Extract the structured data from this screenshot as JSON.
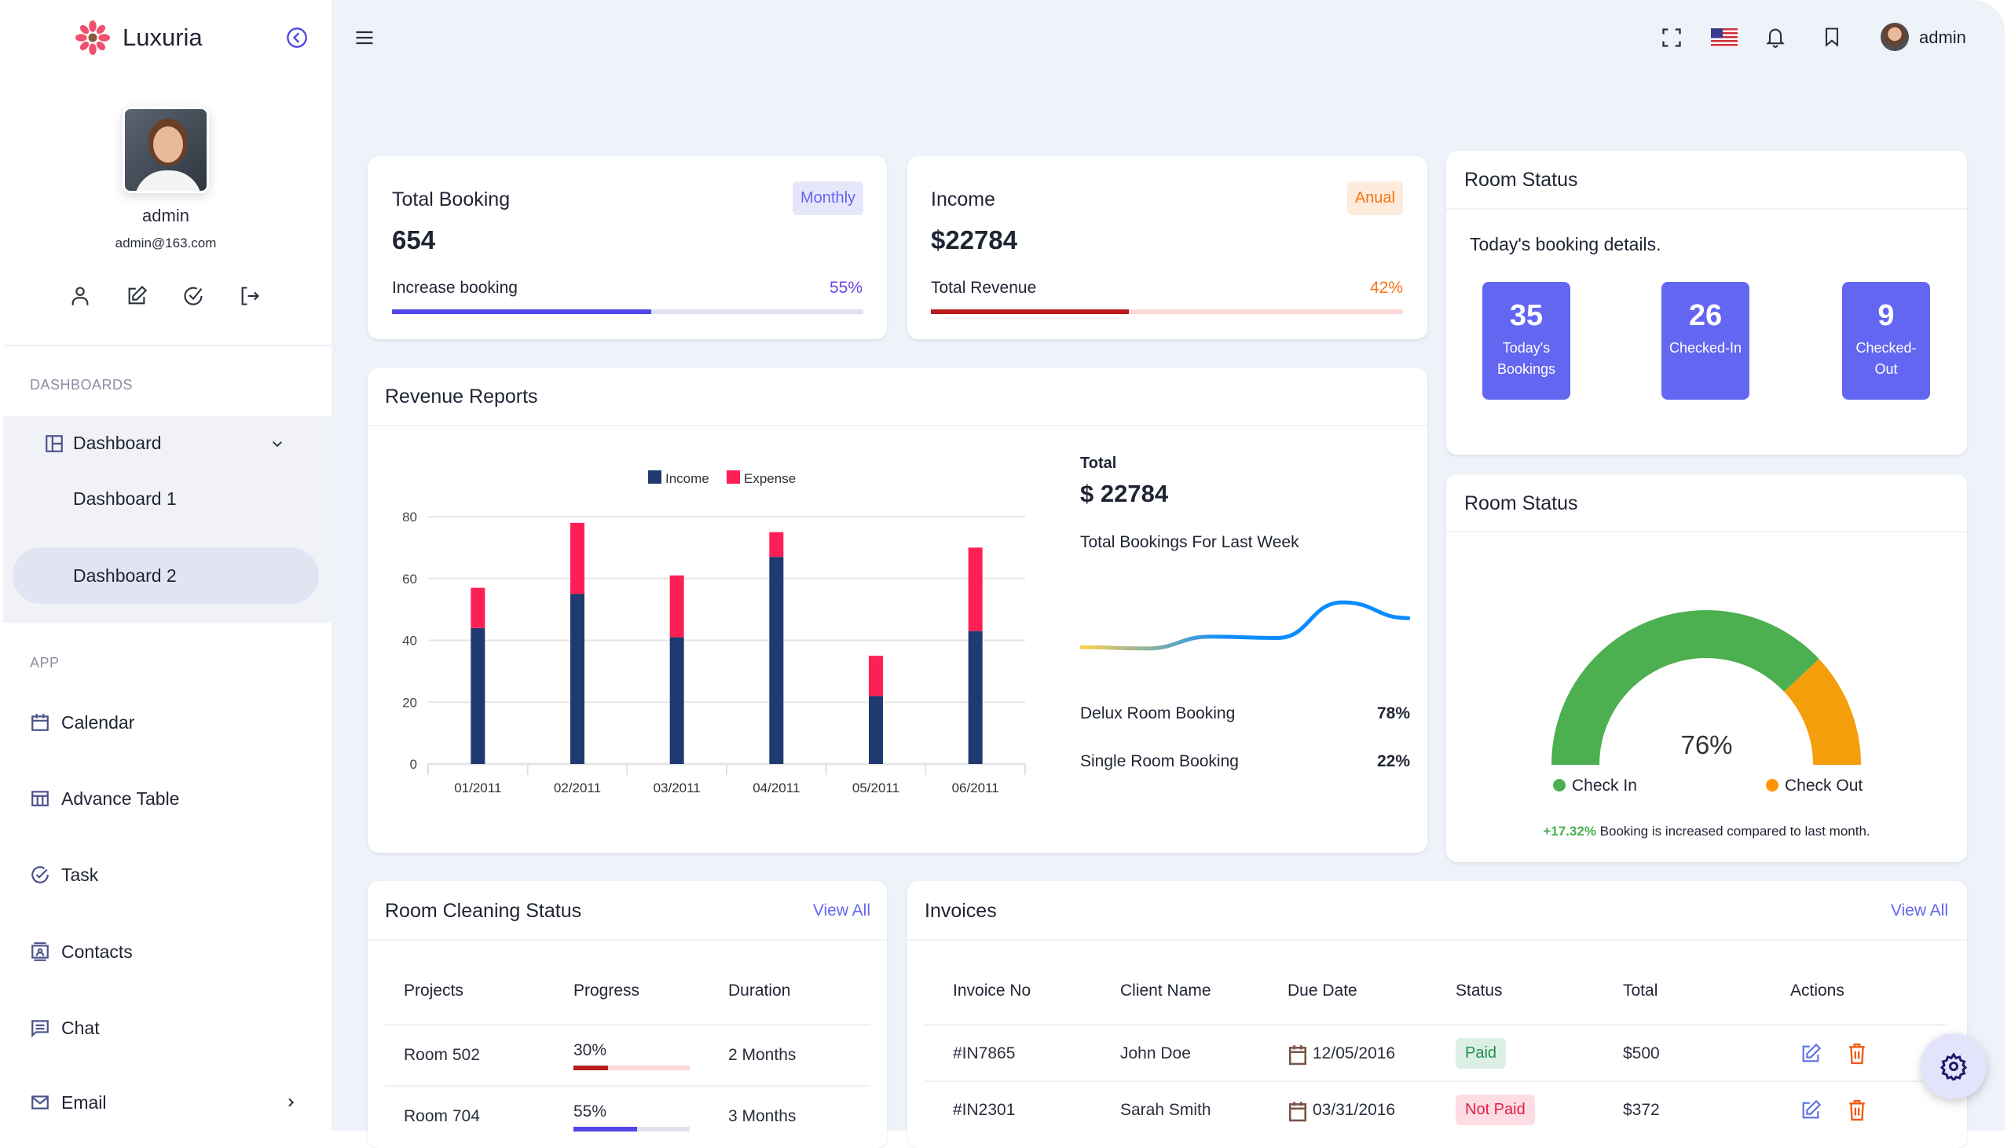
{
  "brand": {
    "name": "Luxuria"
  },
  "profile": {
    "name": "admin",
    "email": "admin@163.com"
  },
  "sidebar": {
    "section_dashboards": "DASHBOARDS",
    "dashboard": {
      "label": "Dashboard",
      "children": [
        {
          "label": "Dashboard 1"
        },
        {
          "label": "Dashboard 2",
          "active": true
        }
      ]
    },
    "section_app": "APP",
    "items": [
      {
        "label": "Calendar",
        "icon": "calendar-icon"
      },
      {
        "label": "Advance Table",
        "icon": "table-icon"
      },
      {
        "label": "Task",
        "icon": "task-icon"
      },
      {
        "label": "Contacts",
        "icon": "contacts-icon"
      },
      {
        "label": "Chat",
        "icon": "chat-icon"
      },
      {
        "label": "Email",
        "icon": "email-icon"
      }
    ]
  },
  "header": {
    "user": "admin",
    "language": "en-US"
  },
  "total_booking": {
    "title": "Total Booking",
    "badge": "Monthly",
    "value": "654",
    "label": "Increase booking",
    "percent_label": "55%",
    "percent": 55,
    "color": "#4f46e5"
  },
  "income": {
    "title": "Income",
    "badge": "Anual",
    "value": "$22784",
    "label": "Total Revenue",
    "percent_label": "42%",
    "percent": 42,
    "color": "#b91c1c"
  },
  "room_status_1": {
    "title": "Room Status",
    "subtitle": "Today's booking details.",
    "boxes": [
      {
        "value": "35",
        "label": "Today's Bookings"
      },
      {
        "value": "26",
        "label": "Checked-In"
      },
      {
        "value": "9",
        "label": "Checked-Out"
      }
    ]
  },
  "revenue": {
    "title": "Revenue Reports",
    "total_label": "Total",
    "total_value": "$ 22784",
    "weekly_label": "Total Bookings For Last Week",
    "stats": [
      {
        "label": "Delux Room Booking",
        "value": "78%"
      },
      {
        "label": "Single Room Booking",
        "value": "22%"
      }
    ]
  },
  "chart_data": [
    {
      "type": "bar",
      "stacked": true,
      "categories": [
        "01/2011",
        "02/2011",
        "03/2011",
        "04/2011",
        "05/2011",
        "06/2011"
      ],
      "series": [
        {
          "name": "Income",
          "color": "#1e3a70",
          "values": [
            44,
            55,
            41,
            67,
            22,
            43
          ]
        },
        {
          "name": "Expense",
          "color": "#ff1f57",
          "values": [
            13,
            23,
            20,
            8,
            13,
            27
          ]
        }
      ],
      "ylim": [
        0,
        80
      ],
      "yticks": [
        "0",
        "20",
        "40",
        "60",
        "80"
      ],
      "grid": true,
      "legend": "top"
    },
    {
      "type": "line",
      "values": [
        10,
        9,
        18,
        17,
        44,
        32
      ],
      "colors": [
        "#fcd34d",
        "#0a8cff"
      ]
    },
    {
      "type": "gauge",
      "value": 76,
      "value_label": "76%",
      "segments": [
        {
          "name": "Check In",
          "color": "#4caf50",
          "value": 76
        },
        {
          "name": "Check Out",
          "color": "#f59e0b",
          "value": 24
        }
      ]
    }
  ],
  "room_status_2": {
    "title": "Room Status",
    "legend": [
      "Check In",
      "Check Out"
    ],
    "change": "+17.32%",
    "change_text": "Booking is increased compared to last month."
  },
  "cleaning": {
    "title": "Room Cleaning Status",
    "view_all": "View All",
    "headers": [
      "Projects",
      "Progress",
      "Duration"
    ],
    "rows": [
      {
        "project": "Room 502",
        "progress_label": "30%",
        "progress": 30,
        "color": "#b91c1c",
        "track": "#fdd8d8",
        "duration": "2 Months"
      },
      {
        "project": "Room 704",
        "progress_label": "55%",
        "progress": 55,
        "color": "#4f46e5",
        "track": "#e2e1ee",
        "duration": "3 Months"
      }
    ]
  },
  "invoices": {
    "title": "Invoices",
    "view_all": "View All",
    "headers": [
      "Invoice No",
      "Client Name",
      "Due Date",
      "Status",
      "Total",
      "Actions"
    ],
    "rows": [
      {
        "no": "#IN7865",
        "client": "John Doe",
        "date": "12/05/2016",
        "status": "Paid",
        "total": "$500"
      },
      {
        "no": "#IN2301",
        "client": "Sarah Smith",
        "date": "03/31/2016",
        "status": "Not Paid",
        "total": "$372"
      }
    ]
  }
}
